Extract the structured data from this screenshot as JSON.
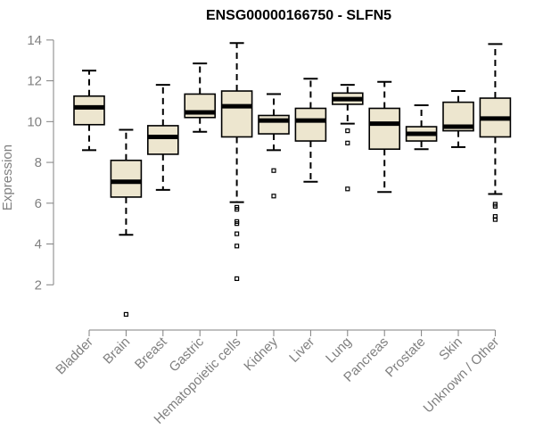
{
  "chart_data": {
    "type": "boxplot",
    "title": "ENSG00000166750 - SLFN5",
    "ylabel": "Expression",
    "xlabel": "",
    "ylim": [
      0,
      14.3
    ],
    "yticks": [
      2,
      4,
      6,
      8,
      10,
      12,
      14
    ],
    "grid": false,
    "box_fill": "#EDE6CF",
    "categories": [
      "Bladder",
      "Brain",
      "Breast",
      "Gastric",
      "Hematopoietic cells",
      "Kidney",
      "Liver",
      "Lung",
      "Pancreas",
      "Prostate",
      "Skin",
      "Unknown / Other"
    ],
    "boxes": [
      {
        "whisker_low": 8.6,
        "q1": 9.85,
        "median": 10.7,
        "q3": 11.25,
        "whisker_high": 12.5,
        "outliers": []
      },
      {
        "whisker_low": 4.45,
        "q1": 6.3,
        "median": 7.05,
        "q3": 8.1,
        "whisker_high": 9.6,
        "outliers": [
          0.55
        ]
      },
      {
        "whisker_low": 6.65,
        "q1": 8.4,
        "median": 9.25,
        "q3": 9.8,
        "whisker_high": 11.8,
        "outliers": []
      },
      {
        "whisker_low": 9.5,
        "q1": 10.2,
        "median": 10.45,
        "q3": 11.35,
        "whisker_high": 12.85,
        "outliers": []
      },
      {
        "whisker_low": 6.05,
        "q1": 9.25,
        "median": 10.75,
        "q3": 11.5,
        "whisker_high": 13.85,
        "outliers": [
          5.8,
          5.7,
          5.1,
          5.0,
          4.5,
          3.9,
          2.3
        ]
      },
      {
        "whisker_low": 8.6,
        "q1": 9.4,
        "median": 10.05,
        "q3": 10.3,
        "whisker_high": 11.35,
        "outliers": [
          7.6,
          6.35
        ]
      },
      {
        "whisker_low": 7.05,
        "q1": 9.05,
        "median": 10.05,
        "q3": 10.65,
        "whisker_high": 12.1,
        "outliers": []
      },
      {
        "whisker_low": 9.9,
        "q1": 10.85,
        "median": 11.1,
        "q3": 11.4,
        "whisker_high": 11.8,
        "outliers": [
          9.55,
          8.95,
          6.7
        ]
      },
      {
        "whisker_low": 6.55,
        "q1": 8.65,
        "median": 9.9,
        "q3": 10.65,
        "whisker_high": 11.95,
        "outliers": []
      },
      {
        "whisker_low": 8.65,
        "q1": 9.05,
        "median": 9.4,
        "q3": 9.75,
        "whisker_high": 10.8,
        "outliers": []
      },
      {
        "whisker_low": 8.75,
        "q1": 9.55,
        "median": 9.75,
        "q3": 10.95,
        "whisker_high": 11.5,
        "outliers": []
      },
      {
        "whisker_low": 6.45,
        "q1": 9.25,
        "median": 10.15,
        "q3": 11.15,
        "whisker_high": 13.8,
        "outliers": [
          5.95,
          5.85,
          5.35,
          5.2
        ]
      }
    ]
  }
}
